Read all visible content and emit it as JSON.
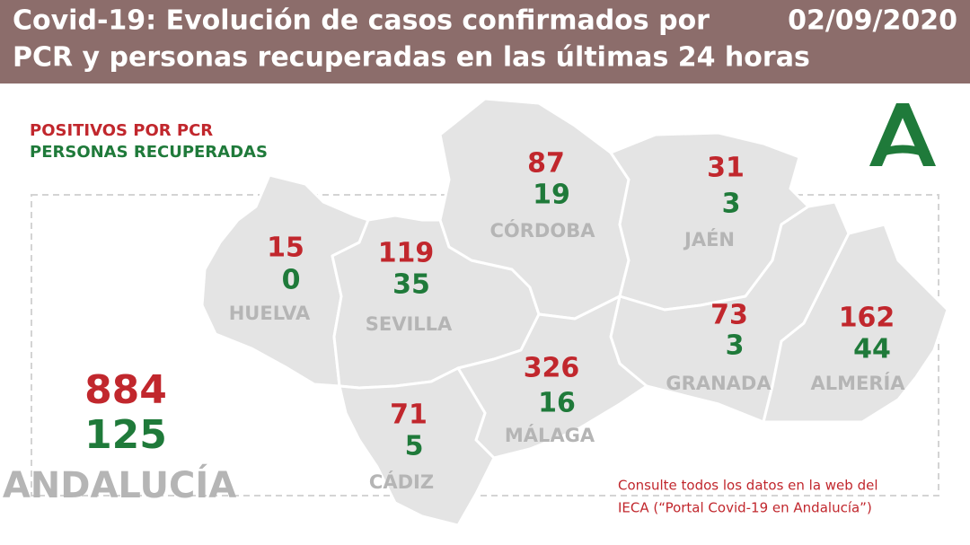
{
  "header": {
    "title_lines": [
      "Covid-19: Evolución de casos confirmados por",
      "PCR y personas recuperadas en las últimas 24 horas"
    ],
    "date": "02/09/2020"
  },
  "legend": {
    "positives": "POSITIVOS POR PCR",
    "recovered": "PERSONAS RECUPERADAS"
  },
  "provinces": [
    {
      "name": "HUELVA",
      "positives": 15,
      "recovered": 0
    },
    {
      "name": "SEVILLA",
      "positives": 119,
      "recovered": 35
    },
    {
      "name": "CÓRDOBA",
      "positives": 87,
      "recovered": 19
    },
    {
      "name": "JAÉN",
      "positives": 31,
      "recovered": 3
    },
    {
      "name": "GRANADA",
      "positives": 73,
      "recovered": 3
    },
    {
      "name": "ALMERÍA",
      "positives": 162,
      "recovered": 44
    },
    {
      "name": "MÁLAGA",
      "positives": 326,
      "recovered": 16
    },
    {
      "name": "CÁDIZ",
      "positives": 71,
      "recovered": 5
    }
  ],
  "total": {
    "name": "ANDALUCÍA",
    "positives": 884,
    "recovered": 125
  },
  "footnote_lines": [
    "Consulte todos los datos en la web del",
    "IECA (“Portal Covid-19 en Andalucía”)"
  ]
}
